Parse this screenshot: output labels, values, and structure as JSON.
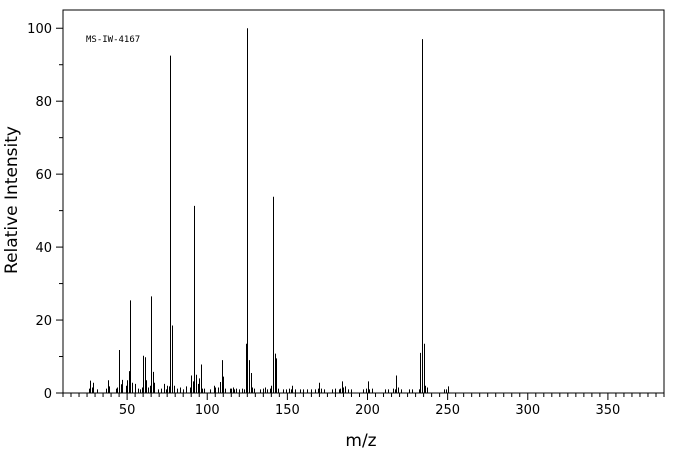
{
  "chart_data": {
    "type": "bar",
    "annotation": "MS-IW-4167",
    "xlabel": "m/z",
    "ylabel": "Relative Intensity",
    "xlim": [
      10,
      385
    ],
    "ylim": [
      0,
      105
    ],
    "x_ticks": [
      50,
      100,
      150,
      200,
      250,
      300,
      350
    ],
    "y_ticks": [
      0,
      20,
      40,
      60,
      80,
      100
    ],
    "grid": false,
    "x_minor_tick_step": 5,
    "y_minor_tick_step": 10,
    "series": [
      {
        "x": [
          26,
          27,
          28,
          29,
          31,
          37,
          38,
          39,
          43,
          44,
          45,
          46,
          47,
          49,
          50,
          51,
          52,
          53,
          55,
          57,
          58,
          59,
          60,
          61,
          62,
          63,
          64,
          65,
          66,
          67,
          69,
          71,
          73,
          74,
          75,
          76,
          77,
          78,
          79,
          81,
          83,
          85,
          87,
          89,
          90,
          91,
          92,
          93,
          94,
          95,
          96,
          97,
          98,
          102,
          104,
          105,
          107,
          108,
          109,
          110,
          111,
          114,
          115,
          116,
          117,
          118,
          120,
          122,
          123,
          124,
          125,
          126,
          127,
          128,
          129,
          133,
          135,
          136,
          137,
          139,
          140,
          141,
          142,
          143,
          144,
          147,
          149,
          151,
          152,
          153,
          155,
          158,
          160,
          162,
          165,
          167,
          169,
          170,
          171,
          173,
          178,
          180,
          182,
          183,
          184,
          185,
          186,
          188,
          190,
          197,
          199,
          200,
          201,
          203,
          211,
          213,
          216,
          217,
          218,
          219,
          221,
          226,
          228,
          232,
          233,
          234,
          235,
          236,
          237,
          248,
          249,
          250
        ],
        "values": [
          1.2,
          3.4,
          1.5,
          2.8,
          1.0,
          1.2,
          3.5,
          1.8,
          1.2,
          1.5,
          11.8,
          2.4,
          3.6,
          2.0,
          3.5,
          6.0,
          25.4,
          2.8,
          2.5,
          1.2,
          1.0,
          1.5,
          10.2,
          9.8,
          3.5,
          1.5,
          2.0,
          26.5,
          5.8,
          2.8,
          1.0,
          1.2,
          2.5,
          1.0,
          2.0,
          1.8,
          92.5,
          18.5,
          2.0,
          1.2,
          1.5,
          1.0,
          1.8,
          1.5,
          4.8,
          3.2,
          51.3,
          5.0,
          2.5,
          4.0,
          7.8,
          1.2,
          1.2,
          1.0,
          2.0,
          1.5,
          1.5,
          3.0,
          9.0,
          4.5,
          1.2,
          1.2,
          1.2,
          1.5,
          1.0,
          1.2,
          1.0,
          1.2,
          1.0,
          13.5,
          100.0,
          9.0,
          5.5,
          1.5,
          1.2,
          1.0,
          1.2,
          1.5,
          1.0,
          1.2,
          2.0,
          53.8,
          10.8,
          9.5,
          1.2,
          1.0,
          1.0,
          1.2,
          1.0,
          2.0,
          1.0,
          1.0,
          1.0,
          1.0,
          1.0,
          1.0,
          1.2,
          2.8,
          1.2,
          1.0,
          1.0,
          1.2,
          1.0,
          1.2,
          3.2,
          1.5,
          1.8,
          1.0,
          1.0,
          1.0,
          1.2,
          3.2,
          1.0,
          1.2,
          1.0,
          1.0,
          1.2,
          1.0,
          4.8,
          1.5,
          1.0,
          1.0,
          1.0,
          1.0,
          11.0,
          97.0,
          13.5,
          2.0,
          1.5,
          1.0,
          1.0,
          1.8
        ]
      }
    ]
  }
}
